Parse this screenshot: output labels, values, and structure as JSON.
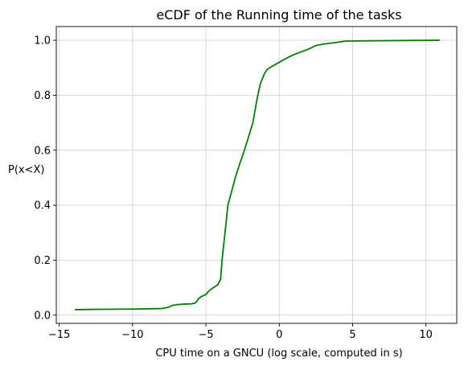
{
  "chart_data": {
    "type": "line",
    "title": "eCDF of the Running time of the tasks",
    "xlabel": "CPU time on a GNCU (log scale, computed in s)",
    "ylabel": "P(x<X)",
    "xlim": [
      -15.2,
      12.1
    ],
    "ylim": [
      -0.03,
      1.05
    ],
    "grid": true,
    "legend": "none",
    "line_color": "#008000",
    "xticks": [
      -15,
      -10,
      -5,
      0,
      5,
      10
    ],
    "xtick_labels": [
      "−15",
      "−10",
      "−5",
      "0",
      "5",
      "10"
    ],
    "yticks": [
      0.0,
      0.2,
      0.4,
      0.6,
      0.8,
      1.0
    ],
    "ytick_labels": [
      "0.0",
      "0.2",
      "0.4",
      "0.6",
      "0.8",
      "1.0"
    ],
    "series": [
      {
        "x": [
          -13.9,
          -12.5,
          -10.0,
          -8.0,
          -7.6,
          -7.3,
          -7.0,
          -6.5,
          -6.0,
          -5.7,
          -5.5,
          -5.3,
          -5.0,
          -4.8,
          -4.5,
          -4.2,
          -4.0,
          -3.9,
          -3.7,
          -3.5,
          -3.3,
          -3.0,
          -2.7,
          -2.5,
          -2.2,
          -1.8,
          -1.5,
          -1.3,
          -1.0,
          -0.8,
          -0.5,
          0.0,
          0.5,
          1.0,
          1.5,
          2.0,
          2.5,
          3.0,
          4.0,
          4.5,
          6.0,
          8.0,
          10.9
        ],
        "y": [
          0.02,
          0.021,
          0.022,
          0.024,
          0.028,
          0.035,
          0.038,
          0.04,
          0.041,
          0.045,
          0.06,
          0.068,
          0.075,
          0.088,
          0.1,
          0.11,
          0.13,
          0.2,
          0.3,
          0.4,
          0.44,
          0.5,
          0.55,
          0.58,
          0.63,
          0.7,
          0.79,
          0.84,
          0.88,
          0.895,
          0.905,
          0.92,
          0.935,
          0.948,
          0.958,
          0.968,
          0.981,
          0.986,
          0.993,
          0.997,
          0.998,
          0.999,
          1.0
        ]
      }
    ]
  }
}
